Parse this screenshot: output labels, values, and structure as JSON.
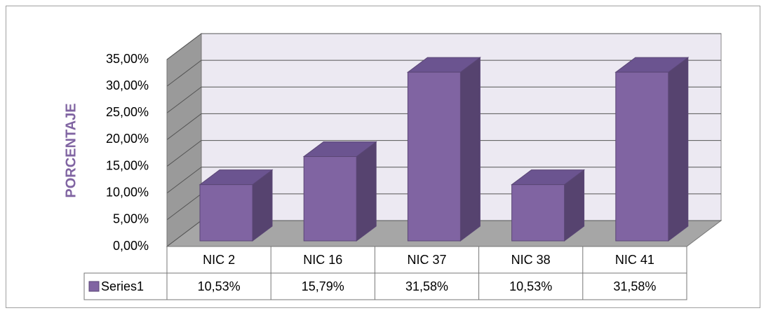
{
  "chart_data": {
    "type": "bar3d",
    "y_label": "PORCENTAJE",
    "categories": [
      "NIC 2",
      "NIC 16",
      "NIC 37",
      "NIC 38",
      "NIC 41"
    ],
    "series": [
      {
        "name": "Series1",
        "color": "#8064a2",
        "values": [
          10.53,
          15.79,
          31.58,
          10.53,
          31.58
        ],
        "value_labels": [
          "10,53%",
          "15,79%",
          "31,58%",
          "10,53%",
          "31,58%"
        ]
      }
    ],
    "ylim": [
      0,
      35
    ],
    "yticks": [
      {
        "value": 0,
        "label": "0,00%"
      },
      {
        "value": 5,
        "label": "5,00%"
      },
      {
        "value": 10,
        "label": "10,00%"
      },
      {
        "value": 15,
        "label": "15,00%"
      },
      {
        "value": 20,
        "label": "20,00%"
      },
      {
        "value": 25,
        "label": "25,00%"
      },
      {
        "value": 30,
        "label": "30,00%"
      },
      {
        "value": 35,
        "label": "35,00%"
      }
    ],
    "grid": true,
    "data_table": true
  }
}
